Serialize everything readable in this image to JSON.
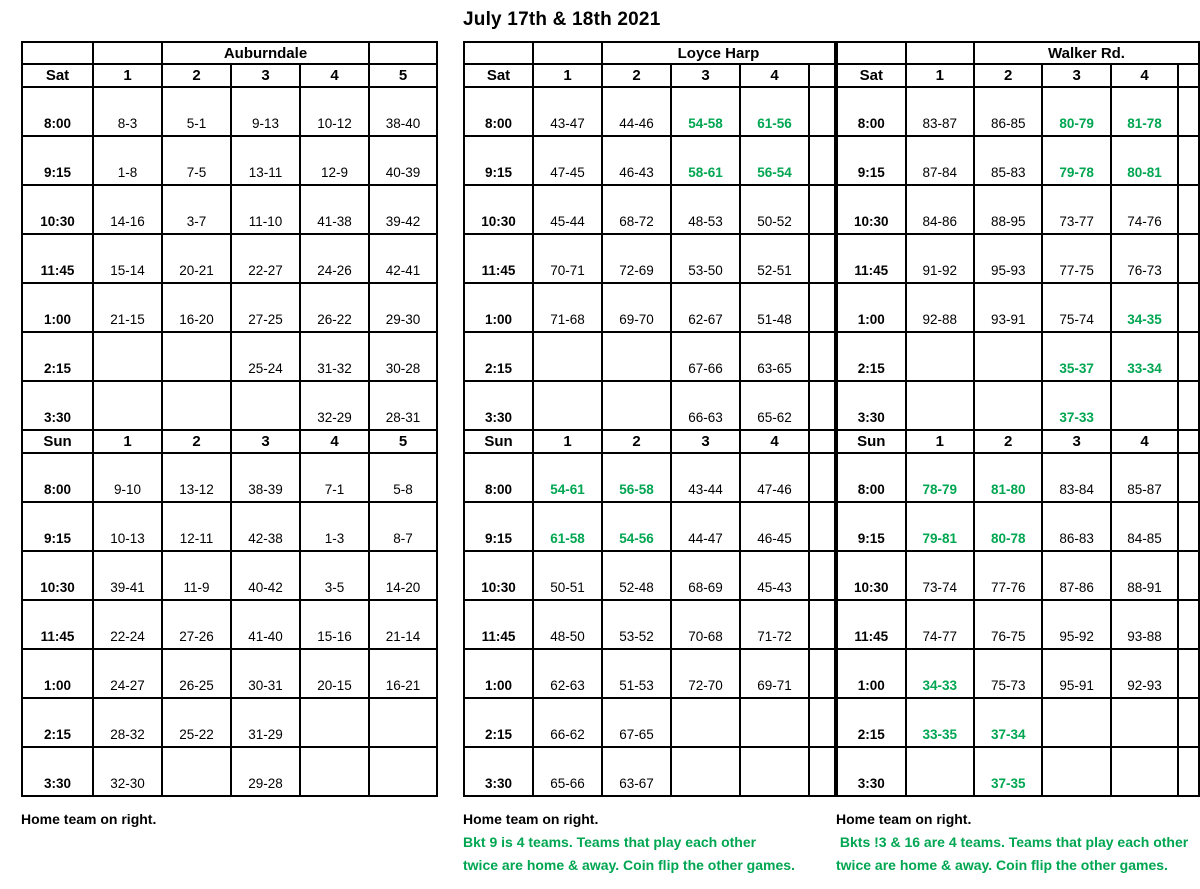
{
  "title": "July 17th & 18th 2021",
  "colors": {
    "accent_green": "#00a651",
    "text": "#000000",
    "border": "#000000"
  },
  "tables": [
    {
      "id": "auburndale",
      "label": "Auburndale",
      "columns": [
        "1",
        "2",
        "3",
        "4",
        "5"
      ],
      "days": [
        {
          "day": "Sat",
          "rows": [
            {
              "time": "8:00",
              "cells": [
                "8-3",
                "5-1",
                "9-13",
                "10-12",
                "38-40"
              ],
              "green": []
            },
            {
              "time": "9:15",
              "cells": [
                "1-8",
                "7-5",
                "13-11",
                "12-9",
                "40-39"
              ],
              "green": []
            },
            {
              "time": "10:30",
              "cells": [
                "14-16",
                "3-7",
                "11-10",
                "41-38",
                "39-42"
              ],
              "green": []
            },
            {
              "time": "11:45",
              "cells": [
                "15-14",
                "20-21",
                "22-27",
                "24-26",
                "42-41"
              ],
              "green": []
            },
            {
              "time": "1:00",
              "cells": [
                "21-15",
                "16-20",
                "27-25",
                "26-22",
                "29-30"
              ],
              "green": []
            },
            {
              "time": "2:15",
              "cells": [
                "",
                "",
                "25-24",
                "31-32",
                "30-28"
              ],
              "green": []
            },
            {
              "time": "3:30",
              "cells": [
                "",
                "",
                "",
                "32-29",
                "28-31"
              ],
              "green": []
            }
          ]
        },
        {
          "day": "Sun",
          "rows": [
            {
              "time": "8:00",
              "cells": [
                "9-10",
                "13-12",
                "38-39",
                "7-1",
                "5-8"
              ],
              "green": []
            },
            {
              "time": "9:15",
              "cells": [
                "10-13",
                "12-11",
                "42-38",
                "1-3",
                "8-7"
              ],
              "green": []
            },
            {
              "time": "10:30",
              "cells": [
                "39-41",
                "11-9",
                "40-42",
                "3-5",
                "14-20"
              ],
              "green": []
            },
            {
              "time": "11:45",
              "cells": [
                "22-24",
                "27-26",
                "41-40",
                "15-16",
                "21-14"
              ],
              "green": []
            },
            {
              "time": "1:00",
              "cells": [
                "24-27",
                "26-25",
                "30-31",
                "20-15",
                "16-21"
              ],
              "green": []
            },
            {
              "time": "2:15",
              "cells": [
                "28-32",
                "25-22",
                "31-29",
                "",
                ""
              ],
              "green": []
            },
            {
              "time": "3:30",
              "cells": [
                "32-30",
                "",
                "29-28",
                "",
                ""
              ],
              "green": []
            }
          ]
        }
      ],
      "notes": [
        {
          "text": "Home team on right.",
          "green": false
        }
      ]
    },
    {
      "id": "loyce-harp",
      "label": "Loyce Harp",
      "columns": [
        "1",
        "2",
        "3",
        "4"
      ],
      "days": [
        {
          "day": "Sat",
          "rows": [
            {
              "time": "8:00",
              "cells": [
                "43-47",
                "44-46",
                "54-58",
                "61-56"
              ],
              "green": [
                2,
                3
              ]
            },
            {
              "time": "9:15",
              "cells": [
                "47-45",
                "46-43",
                "58-61",
                "56-54"
              ],
              "green": [
                2,
                3
              ]
            },
            {
              "time": "10:30",
              "cells": [
                "45-44",
                "68-72",
                "48-53",
                "50-52"
              ],
              "green": []
            },
            {
              "time": "11:45",
              "cells": [
                "70-71",
                "72-69",
                "53-50",
                "52-51"
              ],
              "green": []
            },
            {
              "time": "1:00",
              "cells": [
                "71-68",
                "69-70",
                "62-67",
                "51-48"
              ],
              "green": []
            },
            {
              "time": "2:15",
              "cells": [
                "",
                "",
                "67-66",
                "63-65"
              ],
              "green": []
            },
            {
              "time": "3:30",
              "cells": [
                "",
                "",
                "66-63",
                "65-62"
              ],
              "green": []
            }
          ]
        },
        {
          "day": "Sun",
          "rows": [
            {
              "time": "8:00",
              "cells": [
                "54-61",
                "56-58",
                "43-44",
                "47-46"
              ],
              "green": [
                0,
                1
              ]
            },
            {
              "time": "9:15",
              "cells": [
                "61-58",
                "54-56",
                "44-47",
                "46-45"
              ],
              "green": [
                0,
                1
              ]
            },
            {
              "time": "10:30",
              "cells": [
                "50-51",
                "52-48",
                "68-69",
                "45-43"
              ],
              "green": []
            },
            {
              "time": "11:45",
              "cells": [
                "48-50",
                "53-52",
                "70-68",
                "71-72"
              ],
              "green": []
            },
            {
              "time": "1:00",
              "cells": [
                "62-63",
                "51-53",
                "72-70",
                "69-71"
              ],
              "green": []
            },
            {
              "time": "2:15",
              "cells": [
                "66-62",
                "67-65",
                "",
                ""
              ],
              "green": []
            },
            {
              "time": "3:30",
              "cells": [
                "65-66",
                "63-67",
                "",
                ""
              ],
              "green": []
            }
          ]
        }
      ],
      "notes": [
        {
          "text": "Home team on right.",
          "green": false
        },
        {
          "text": "Bkt 9 is 4 teams. Teams that play each other",
          "green": true
        },
        {
          "text": "twice are home & away. Coin flip the other games.",
          "green": true
        }
      ]
    },
    {
      "id": "walker-rd",
      "label": "Walker Rd.",
      "columns": [
        "1",
        "2",
        "3",
        "4"
      ],
      "days": [
        {
          "day": "Sat",
          "rows": [
            {
              "time": "8:00",
              "cells": [
                "83-87",
                "86-85",
                "80-79",
                "81-78"
              ],
              "green": [
                2,
                3
              ]
            },
            {
              "time": "9:15",
              "cells": [
                "87-84",
                "85-83",
                "79-78",
                "80-81"
              ],
              "green": [
                2,
                3
              ]
            },
            {
              "time": "10:30",
              "cells": [
                "84-86",
                "88-95",
                "73-77",
                "74-76"
              ],
              "green": []
            },
            {
              "time": "11:45",
              "cells": [
                "91-92",
                "95-93",
                "77-75",
                "76-73"
              ],
              "green": []
            },
            {
              "time": "1:00",
              "cells": [
                "92-88",
                "93-91",
                "75-74",
                "34-35"
              ],
              "green": [
                3
              ]
            },
            {
              "time": "2:15",
              "cells": [
                "",
                "",
                "35-37",
                "33-34"
              ],
              "green": [
                2,
                3
              ]
            },
            {
              "time": "3:30",
              "cells": [
                "",
                "",
                "37-33",
                ""
              ],
              "green": [
                2
              ]
            }
          ]
        },
        {
          "day": "Sun",
          "rows": [
            {
              "time": "8:00",
              "cells": [
                "78-79",
                "81-80",
                "83-84",
                "85-87"
              ],
              "green": [
                0,
                1
              ]
            },
            {
              "time": "9:15",
              "cells": [
                "79-81",
                "80-78",
                "86-83",
                "84-85"
              ],
              "green": [
                0,
                1
              ]
            },
            {
              "time": "10:30",
              "cells": [
                "73-74",
                "77-76",
                "87-86",
                "88-91"
              ],
              "green": []
            },
            {
              "time": "11:45",
              "cells": [
                "74-77",
                "76-75",
                "95-92",
                "93-88"
              ],
              "green": []
            },
            {
              "time": "1:00",
              "cells": [
                "34-33",
                "75-73",
                "95-91",
                "92-93"
              ],
              "green": [
                0
              ]
            },
            {
              "time": "2:15",
              "cells": [
                "33-35",
                "37-34",
                "",
                ""
              ],
              "green": [
                0,
                1
              ]
            },
            {
              "time": "3:30",
              "cells": [
                "",
                "37-35",
                "",
                ""
              ],
              "green": [
                1
              ]
            }
          ]
        }
      ],
      "notes": [
        {
          "text": "Home team on right.",
          "green": false
        },
        {
          "text": " Bkts !3 & 16 are 4 teams. Teams that play each other",
          "green": true
        },
        {
          "text": "twice are home & away. Coin flip the other games.",
          "green": true
        }
      ]
    }
  ]
}
